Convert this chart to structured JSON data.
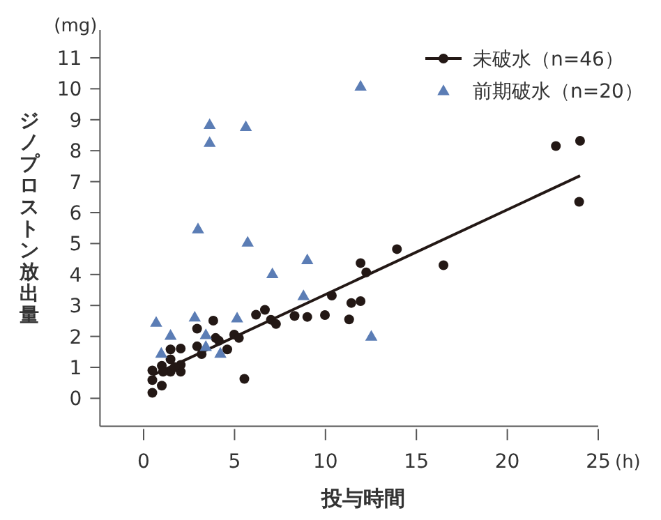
{
  "chart_data": {
    "type": "scatter",
    "xlabel": "投与時間",
    "ylabel": "ジノプロストン放出量",
    "annotations": [
      "(mg)",
      "(h)"
    ],
    "xlim": [
      -2.4,
      25
    ],
    "xticks": [
      0,
      5,
      10,
      15,
      20,
      25
    ],
    "ylim": [
      -0.9,
      11.9
    ],
    "yticks": [
      0,
      1,
      2,
      3,
      4,
      5,
      6,
      7,
      8,
      9,
      10,
      11
    ],
    "legend": "top right",
    "series": [
      {
        "name": "未破水（n=46）",
        "color": "#231815",
        "marker": "circle",
        "x": [
          0.48,
          0.48,
          0.48,
          1.0,
          1.0,
          1.48,
          1.48,
          1.48,
          1.07,
          2.04,
          2.04,
          2.04,
          2.94,
          2.94,
          3.19,
          3.83,
          3.96,
          4.14,
          4.6,
          4.98,
          5.24,
          5.54,
          6.18,
          6.67,
          7.0,
          7.28,
          8.3,
          9.0,
          9.97,
          10.35,
          11.3,
          11.42,
          11.93,
          11.93,
          12.24,
          13.93,
          16.49,
          22.67,
          24.0,
          23.95,
          1.71
        ],
        "values": [
          0.18,
          0.59,
          0.9,
          0.41,
          1.05,
          1.26,
          1.58,
          0.86,
          0.86,
          0.86,
          1.08,
          1.61,
          1.68,
          2.25,
          1.43,
          2.51,
          1.95,
          1.86,
          1.58,
          2.06,
          1.95,
          0.63,
          2.7,
          2.86,
          2.54,
          2.4,
          2.66,
          2.63,
          2.69,
          3.32,
          2.55,
          3.08,
          3.14,
          4.37,
          4.07,
          4.82,
          4.3,
          8.15,
          8.32,
          6.35,
          1.01
        ]
      },
      {
        "type": "line",
        "color": "#231815",
        "marker": "none",
        "line_style": "solid",
        "x": [
          0.5,
          24
        ],
        "values": [
          0.75,
          7.19
        ]
      },
      {
        "name": "前期破水（n=20）",
        "color": "#5b7db5",
        "marker": "triangle",
        "x": [
          11.93,
          3.63,
          5.62,
          3.63,
          2.99,
          5.72,
          7.08,
          9.0,
          8.79,
          0.69,
          2.81,
          5.14,
          1.48,
          3.42,
          0.97,
          3.42,
          4.22,
          12.52
        ],
        "values": [
          10.09,
          8.85,
          8.78,
          8.27,
          5.48,
          5.05,
          4.03,
          4.48,
          3.32,
          2.46,
          2.63,
          2.6,
          2.04,
          2.06,
          1.46,
          1.68,
          1.46,
          2.01
        ]
      }
    ]
  }
}
